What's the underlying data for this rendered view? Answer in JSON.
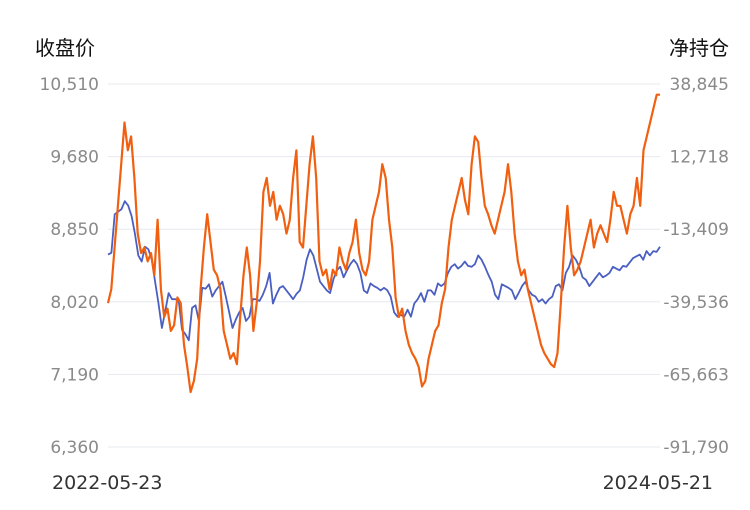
{
  "chart_data": {
    "type": "line",
    "left_axis_title": "收盘价",
    "right_axis_title": "净持仓",
    "left_ticks": [
      "10,510",
      "9,680",
      "8,850",
      "8,020",
      "7,190",
      "6,360"
    ],
    "right_ticks": [
      "38,845",
      "12,718",
      "-13,409",
      "-39,536",
      "-65,663",
      "-91,790"
    ],
    "left_range": [
      6360,
      10510
    ],
    "right_range": [
      -91790,
      38845
    ],
    "x_labels": [
      "2022-05-23",
      "2024-05-21"
    ],
    "grid": true,
    "series": [
      {
        "color": "#4a5fc1",
        "axis": "left",
        "values": [
          8560,
          8580,
          9020,
          9050,
          9080,
          9170,
          9120,
          9000,
          8800,
          8550,
          8480,
          8650,
          8620,
          8500,
          8250,
          8000,
          7720,
          7910,
          8120,
          8050,
          8050,
          8040,
          7700,
          7650,
          7580,
          7950,
          7980,
          7800,
          8180,
          8170,
          8220,
          8080,
          8150,
          8200,
          8250,
          8080,
          7900,
          7720,
          7820,
          7900,
          7950,
          7800,
          7850,
          8050,
          8050,
          8030,
          8100,
          8200,
          8350,
          8000,
          8100,
          8180,
          8200,
          8150,
          8100,
          8050,
          8110,
          8150,
          8300,
          8500,
          8620,
          8550,
          8400,
          8250,
          8200,
          8150,
          8120,
          8280,
          8380,
          8420,
          8300,
          8380,
          8450,
          8500,
          8450,
          8350,
          8150,
          8120,
          8230,
          8200,
          8180,
          8150,
          8180,
          8150,
          8080,
          7900,
          7850,
          7870,
          7850,
          7930,
          7850,
          8000,
          8050,
          8120,
          8020,
          8150,
          8150,
          8100,
          8230,
          8200,
          8230,
          8350,
          8420,
          8450,
          8400,
          8430,
          8480,
          8430,
          8420,
          8450,
          8550,
          8500,
          8420,
          8330,
          8250,
          8100,
          8050,
          8220,
          8200,
          8180,
          8150,
          8050,
          8120,
          8200,
          8250,
          8150,
          8100,
          8080,
          8020,
          8050,
          8000,
          8050,
          8080,
          8200,
          8220,
          8150,
          8350,
          8420,
          8550,
          8500,
          8420,
          8300,
          8270,
          8200,
          8250,
          8300,
          8350,
          8300,
          8320,
          8350,
          8420,
          8400,
          8380,
          8430,
          8420,
          8470,
          8520,
          8540,
          8560,
          8500,
          8600,
          8550,
          8600,
          8590,
          8650
        ]
      },
      {
        "color": "#f06010",
        "axis": "right",
        "values": [
          -40000,
          -35000,
          -20000,
          -5000,
          10000,
          25000,
          15000,
          20000,
          5000,
          -15000,
          -22000,
          -20000,
          -25000,
          -22000,
          -30000,
          -10000,
          -35000,
          -45000,
          -42000,
          -50000,
          -48000,
          -38000,
          -40000,
          -55000,
          -63000,
          -72000,
          -68000,
          -60000,
          -35000,
          -20000,
          -8000,
          -18000,
          -28000,
          -30000,
          -35000,
          -50000,
          -55000,
          -60000,
          -58000,
          -62000,
          -45000,
          -30000,
          -20000,
          -30000,
          -50000,
          -40000,
          -25000,
          0,
          5000,
          -5000,
          0,
          -10000,
          -5000,
          -8000,
          -15000,
          -10000,
          5000,
          15000,
          -18000,
          -20000,
          -5000,
          10000,
          20000,
          5000,
          -25000,
          -30000,
          -28000,
          -35000,
          -28000,
          -30000,
          -20000,
          -25000,
          -28000,
          -22000,
          -18000,
          -10000,
          -22000,
          -28000,
          -30000,
          -25000,
          -10000,
          -5000,
          0,
          10000,
          5000,
          -10000,
          -20000,
          -38000,
          -45000,
          -42000,
          -50000,
          -55000,
          -58000,
          -60000,
          -63000,
          -70000,
          -68000,
          -60000,
          -55000,
          -50000,
          -48000,
          -40000,
          -35000,
          -20000,
          -10000,
          -5000,
          0,
          5000,
          -3000,
          -8000,
          10000,
          20000,
          18000,
          5000,
          -5000,
          -8000,
          -12000,
          -15000,
          -10000,
          -5000,
          0,
          10000,
          0,
          -15000,
          -25000,
          -30000,
          -28000,
          -35000,
          -40000,
          -45000,
          -50000,
          -55000,
          -58000,
          -60000,
          -62000,
          -63000,
          -58000,
          -40000,
          -20000,
          -5000,
          -20000,
          -30000,
          -28000,
          -25000,
          -20000,
          -15000,
          -10000,
          -20000,
          -15000,
          -12000,
          -15000,
          -18000,
          -10000,
          0,
          -5000,
          -5000,
          -10000,
          -15000,
          -8000,
          -5000,
          5000,
          -5000,
          15000,
          20000,
          25000,
          30000,
          35000,
          35000
        ]
      }
    ]
  }
}
